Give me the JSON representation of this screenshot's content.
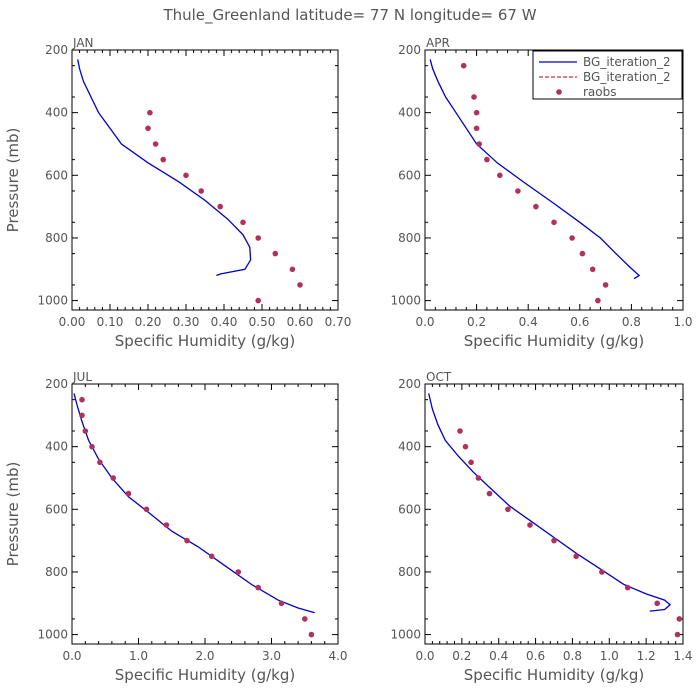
{
  "figure_title": "Thule_Greenland  latitude= 77 N longitude= 67 W",
  "colors": {
    "bg_line": "#0000cc",
    "bg_dashed": "#cc3333",
    "raobs": "#b03060",
    "axis": "#000000",
    "text": "#555555"
  },
  "legend": [
    {
      "label": "BG_iteration_2",
      "style": "solid",
      "color": "#0000cc"
    },
    {
      "label": "BG_iteration_2",
      "style": "dashed",
      "color": "#cc3333"
    },
    {
      "label": "raobs",
      "style": "dot",
      "color": "#b03060"
    }
  ],
  "chart_data": [
    {
      "type": "line+scatter",
      "panel_label": "JAN",
      "xlabel": "Specific Humidity (g/kg)",
      "ylabel": "Pressure (mb)",
      "xlim": [
        0,
        0.7
      ],
      "ylim": [
        1030,
        200
      ],
      "xticks": [
        "0.00",
        "0.10",
        "0.20",
        "0.30",
        "0.40",
        "0.50",
        "0.60",
        "0.70"
      ],
      "yticks": [
        "200",
        "400",
        "600",
        "800",
        "1000"
      ],
      "bg_line": [
        [
          0.015,
          230
        ],
        [
          0.02,
          260
        ],
        [
          0.03,
          300
        ],
        [
          0.05,
          350
        ],
        [
          0.07,
          400
        ],
        [
          0.1,
          450
        ],
        [
          0.13,
          500
        ],
        [
          0.2,
          560
        ],
        [
          0.28,
          620
        ],
        [
          0.35,
          680
        ],
        [
          0.41,
          740
        ],
        [
          0.45,
          790
        ],
        [
          0.468,
          830
        ],
        [
          0.47,
          870
        ],
        [
          0.455,
          900
        ],
        [
          0.39,
          915
        ],
        [
          0.38,
          920
        ]
      ],
      "raobs": [
        [
          0.205,
          400
        ],
        [
          0.2,
          450
        ],
        [
          0.22,
          500
        ],
        [
          0.24,
          550
        ],
        [
          0.3,
          600
        ],
        [
          0.34,
          650
        ],
        [
          0.39,
          700
        ],
        [
          0.45,
          750
        ],
        [
          0.49,
          800
        ],
        [
          0.535,
          850
        ],
        [
          0.58,
          900
        ],
        [
          0.6,
          950
        ],
        [
          0.49,
          1000
        ]
      ]
    },
    {
      "type": "line+scatter",
      "panel_label": "APR",
      "xlabel": "Specific Humidity (g/kg)",
      "ylabel": "",
      "xlim": [
        0,
        1.0
      ],
      "ylim": [
        1030,
        200
      ],
      "xticks": [
        "0.0",
        "0.2",
        "0.4",
        "0.6",
        "0.8",
        "1.0"
      ],
      "yticks": [
        "200",
        "400",
        "600",
        "800",
        "1000"
      ],
      "legend_position": "top-right",
      "bg_line": [
        [
          0.02,
          230
        ],
        [
          0.03,
          260
        ],
        [
          0.05,
          300
        ],
        [
          0.08,
          350
        ],
        [
          0.12,
          400
        ],
        [
          0.16,
          450
        ],
        [
          0.2,
          500
        ],
        [
          0.28,
          560
        ],
        [
          0.38,
          620
        ],
        [
          0.5,
          690
        ],
        [
          0.6,
          750
        ],
        [
          0.68,
          800
        ],
        [
          0.74,
          850
        ],
        [
          0.79,
          890
        ],
        [
          0.83,
          920
        ],
        [
          0.81,
          930
        ]
      ],
      "raobs": [
        [
          0.15,
          250
        ],
        [
          0.19,
          350
        ],
        [
          0.2,
          400
        ],
        [
          0.2,
          450
        ],
        [
          0.21,
          500
        ],
        [
          0.24,
          550
        ],
        [
          0.29,
          600
        ],
        [
          0.36,
          650
        ],
        [
          0.43,
          700
        ],
        [
          0.5,
          750
        ],
        [
          0.57,
          800
        ],
        [
          0.61,
          850
        ],
        [
          0.65,
          900
        ],
        [
          0.7,
          950
        ],
        [
          0.67,
          1000
        ]
      ]
    },
    {
      "type": "line+scatter",
      "panel_label": "JUL",
      "xlabel": "Specific Humidity (g/kg)",
      "ylabel": "Pressure (mb)",
      "xlim": [
        0,
        4.0
      ],
      "ylim": [
        1030,
        200
      ],
      "xticks": [
        "0.0",
        "1.0",
        "2.0",
        "3.0",
        "4.0"
      ],
      "yticks": [
        "200",
        "400",
        "600",
        "800",
        "1000"
      ],
      "bg_line": [
        [
          0.03,
          230
        ],
        [
          0.08,
          270
        ],
        [
          0.15,
          320
        ],
        [
          0.25,
          380
        ],
        [
          0.4,
          440
        ],
        [
          0.6,
          500
        ],
        [
          0.85,
          560
        ],
        [
          1.15,
          610
        ],
        [
          1.5,
          670
        ],
        [
          1.9,
          720
        ],
        [
          2.3,
          780
        ],
        [
          2.7,
          840
        ],
        [
          3.1,
          890
        ],
        [
          3.4,
          915
        ],
        [
          3.65,
          930
        ]
      ],
      "raobs": [
        [
          0.15,
          250
        ],
        [
          0.15,
          300
        ],
        [
          0.2,
          350
        ],
        [
          0.3,
          400
        ],
        [
          0.42,
          450
        ],
        [
          0.62,
          500
        ],
        [
          0.85,
          550
        ],
        [
          1.12,
          600
        ],
        [
          1.42,
          650
        ],
        [
          1.73,
          700
        ],
        [
          2.1,
          750
        ],
        [
          2.5,
          800
        ],
        [
          2.8,
          850
        ],
        [
          3.15,
          900
        ],
        [
          3.5,
          950
        ],
        [
          3.6,
          1000
        ]
      ]
    },
    {
      "type": "line+scatter",
      "panel_label": "OCT",
      "xlabel": "Specific Humidity (g/kg)",
      "ylabel": "",
      "xlim": [
        0,
        1.4
      ],
      "ylim": [
        1030,
        200
      ],
      "xticks": [
        "0.0",
        "0.2",
        "0.4",
        "0.6",
        "0.8",
        "1.0",
        "1.2",
        "1.4"
      ],
      "yticks": [
        "200",
        "400",
        "600",
        "800",
        "1000"
      ],
      "bg_line": [
        [
          0.02,
          230
        ],
        [
          0.04,
          280
        ],
        [
          0.07,
          330
        ],
        [
          0.11,
          380
        ],
        [
          0.18,
          430
        ],
        [
          0.26,
          480
        ],
        [
          0.35,
          530
        ],
        [
          0.46,
          590
        ],
        [
          0.58,
          640
        ],
        [
          0.7,
          690
        ],
        [
          0.82,
          740
        ],
        [
          0.95,
          790
        ],
        [
          1.08,
          840
        ],
        [
          1.2,
          870
        ],
        [
          1.3,
          890
        ],
        [
          1.33,
          905
        ],
        [
          1.3,
          920
        ],
        [
          1.22,
          925
        ]
      ],
      "raobs": [
        [
          0.19,
          350
        ],
        [
          0.22,
          400
        ],
        [
          0.25,
          450
        ],
        [
          0.29,
          500
        ],
        [
          0.35,
          550
        ],
        [
          0.45,
          600
        ],
        [
          0.57,
          650
        ],
        [
          0.7,
          700
        ],
        [
          0.82,
          750
        ],
        [
          0.96,
          800
        ],
        [
          1.1,
          850
        ],
        [
          1.26,
          900
        ],
        [
          1.38,
          950
        ],
        [
          1.37,
          1000
        ]
      ]
    }
  ]
}
